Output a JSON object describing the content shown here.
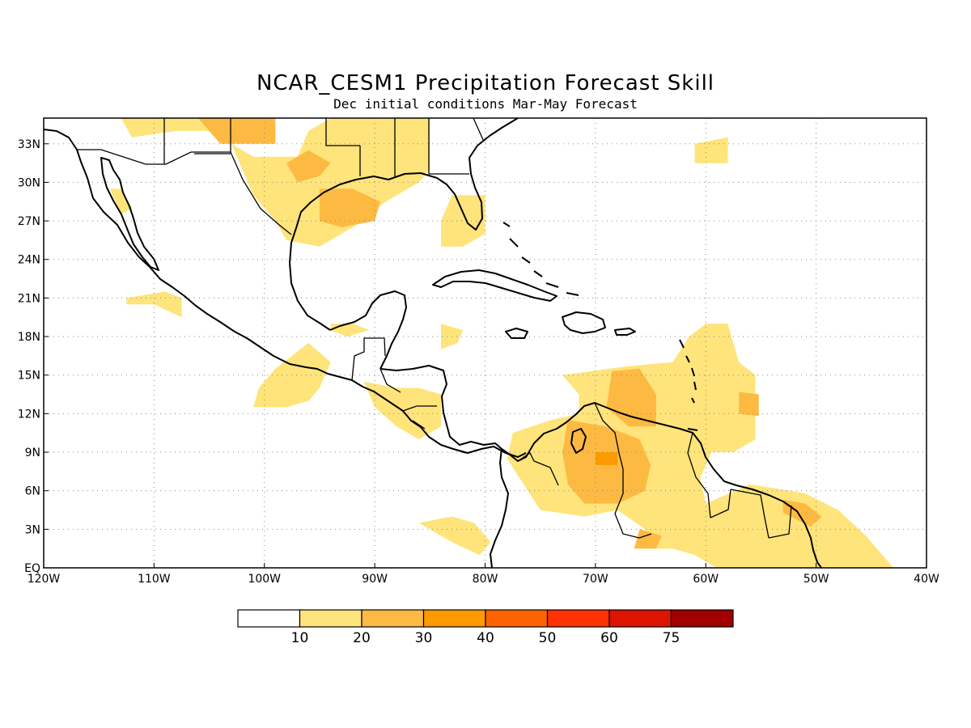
{
  "title": "NCAR_CESM1 Precipitation Forecast Skill",
  "subtitle": "Dec initial conditions  Mar-May Forecast",
  "map": {
    "lon_range": [
      -120,
      -40
    ],
    "lat_range": [
      0,
      35
    ],
    "lon_ticks": [
      {
        "value": -120,
        "label": "120W"
      },
      {
        "value": -110,
        "label": "110W"
      },
      {
        "value": -100,
        "label": "100W"
      },
      {
        "value": -90,
        "label": "90W"
      },
      {
        "value": -80,
        "label": "80W"
      },
      {
        "value": -70,
        "label": "70W"
      },
      {
        "value": -60,
        "label": "60W"
      },
      {
        "value": -50,
        "label": "50W"
      },
      {
        "value": -40,
        "label": "40W"
      }
    ],
    "lat_ticks": [
      {
        "value": 0,
        "label": "EQ"
      },
      {
        "value": 3,
        "label": "3N"
      },
      {
        "value": 6,
        "label": "6N"
      },
      {
        "value": 9,
        "label": "9N"
      },
      {
        "value": 12,
        "label": "12N"
      },
      {
        "value": 15,
        "label": "15N"
      },
      {
        "value": 18,
        "label": "18N"
      },
      {
        "value": 21,
        "label": "21N"
      },
      {
        "value": 24,
        "label": "24N"
      },
      {
        "value": 27,
        "label": "27N"
      },
      {
        "value": 30,
        "label": "30N"
      },
      {
        "value": 33,
        "label": "33N"
      }
    ],
    "grid": true
  },
  "colorbar": {
    "colors": [
      "#ffffff",
      "#fee47a",
      "#fdba42",
      "#fd9a00",
      "#fd6400",
      "#fd3200",
      "#dc1400",
      "#a00000"
    ],
    "labels": [
      "10",
      "20",
      "30",
      "40",
      "50",
      "60",
      "75"
    ]
  },
  "skill_regions": [
    {
      "level": 1,
      "coords": [
        [
          -113,
          35
        ],
        [
          -103.5,
          35
        ],
        [
          -103,
          33
        ],
        [
          -101,
          32
        ],
        [
          -97,
          32
        ],
        [
          -96,
          34
        ],
        [
          -94,
          35
        ],
        [
          -85,
          35
        ],
        [
          -85,
          31
        ],
        [
          -86,
          30
        ],
        [
          -89,
          28.5
        ],
        [
          -92,
          26.5
        ],
        [
          -95,
          25
        ],
        [
          -98,
          25.5
        ],
        [
          -99,
          27
        ],
        [
          -101,
          29
        ],
        [
          -102,
          31
        ],
        [
          -103,
          33
        ],
        [
          -105,
          34
        ],
        [
          -108,
          34
        ],
        [
          -112,
          33.5
        ]
      ]
    },
    {
      "level": 1,
      "coords": [
        [
          -83,
          29
        ],
        [
          -80,
          29
        ],
        [
          -80,
          26
        ],
        [
          -82,
          25
        ],
        [
          -84,
          25
        ],
        [
          -84,
          27
        ]
      ]
    },
    {
      "level": 1,
      "coords": [
        [
          -61,
          33
        ],
        [
          -58,
          33.5
        ],
        [
          -58,
          31.5
        ],
        [
          -61,
          31.5
        ]
      ]
    },
    {
      "level": 1,
      "coords": [
        [
          -114,
          29.5
        ],
        [
          -113,
          29.5
        ],
        [
          -112,
          28
        ],
        [
          -113,
          27.5
        ]
      ]
    },
    {
      "level": 1,
      "coords": [
        [
          -112.5,
          21
        ],
        [
          -109,
          21.5
        ],
        [
          -107.5,
          21
        ],
        [
          -107.5,
          19.5
        ],
        [
          -110,
          20.5
        ],
        [
          -112.5,
          20.5
        ]
      ]
    },
    {
      "level": 1,
      "coords": [
        [
          -94,
          19
        ],
        [
          -92,
          19
        ],
        [
          -90.5,
          18.5
        ],
        [
          -92.5,
          18
        ],
        [
          -94,
          18.5
        ]
      ]
    },
    {
      "level": 1,
      "coords": [
        [
          -84,
          19
        ],
        [
          -82,
          18.5
        ],
        [
          -82.5,
          17.5
        ],
        [
          -84,
          17
        ]
      ]
    },
    {
      "level": 1,
      "coords": [
        [
          -96,
          17.5
        ],
        [
          -94,
          16
        ],
        [
          -95,
          14
        ],
        [
          -96,
          13
        ],
        [
          -98,
          12.5
        ],
        [
          -101,
          12.5
        ],
        [
          -100.5,
          14
        ],
        [
          -99,
          15.5
        ]
      ]
    },
    {
      "level": 1,
      "coords": [
        [
          -91,
          14.5
        ],
        [
          -88,
          14
        ],
        [
          -86,
          14
        ],
        [
          -84,
          13.5
        ],
        [
          -84,
          11
        ],
        [
          -86,
          10
        ],
        [
          -88,
          11
        ],
        [
          -90,
          12.5
        ]
      ]
    },
    {
      "level": 1,
      "coords": [
        [
          -86,
          3.5
        ],
        [
          -83,
          4
        ],
        [
          -81,
          3.5
        ],
        [
          -79.5,
          2
        ],
        [
          -80.5,
          1
        ],
        [
          -83,
          2
        ]
      ]
    },
    {
      "level": 1,
      "coords": [
        [
          -73,
          15
        ],
        [
          -67,
          15.7
        ],
        [
          -63,
          16
        ],
        [
          -61.5,
          18
        ],
        [
          -60,
          19
        ],
        [
          -58,
          19
        ],
        [
          -57,
          16
        ],
        [
          -55.5,
          15
        ],
        [
          -55.5,
          10
        ],
        [
          -57.5,
          9
        ],
        [
          -59.5,
          9
        ],
        [
          -60.5,
          7
        ],
        [
          -60,
          5
        ],
        [
          -56,
          6.5
        ],
        [
          -51,
          5.8
        ],
        [
          -48,
          4.5
        ],
        [
          -45.5,
          2.5
        ],
        [
          -44,
          1
        ],
        [
          -43,
          0
        ],
        [
          -59,
          0
        ],
        [
          -61,
          1
        ],
        [
          -63,
          1.5
        ],
        [
          -65,
          1.5
        ],
        [
          -65.5,
          3
        ],
        [
          -68,
          4.5
        ],
        [
          -71,
          4
        ],
        [
          -75,
          4.5
        ],
        [
          -76.5,
          6.5
        ],
        [
          -78,
          8.5
        ],
        [
          -77.5,
          10.5
        ],
        [
          -74,
          11.5
        ],
        [
          -71.5,
          12
        ],
        [
          -71.5,
          13.5
        ]
      ]
    },
    {
      "level": 2,
      "coords": [
        [
          -106,
          35
        ],
        [
          -99,
          35
        ],
        [
          -99,
          33
        ],
        [
          -104,
          33
        ]
      ]
    },
    {
      "level": 2,
      "coords": [
        [
          -98,
          31.5
        ],
        [
          -96,
          32.5
        ],
        [
          -94,
          31.5
        ],
        [
          -95,
          30.5
        ],
        [
          -97,
          30
        ]
      ]
    },
    {
      "level": 2,
      "coords": [
        [
          -95,
          29.5
        ],
        [
          -92,
          29.5
        ],
        [
          -89.5,
          28.5
        ],
        [
          -90,
          27
        ],
        [
          -93,
          26.5
        ],
        [
          -95,
          27
        ]
      ]
    },
    {
      "level": 2,
      "coords": [
        [
          -68.5,
          15.3
        ],
        [
          -66,
          15.5
        ],
        [
          -64.5,
          13.5
        ],
        [
          -64.5,
          11
        ],
        [
          -67,
          11
        ],
        [
          -69,
          12.5
        ]
      ]
    },
    {
      "level": 2,
      "coords": [
        [
          -72.5,
          11.5
        ],
        [
          -69,
          11
        ],
        [
          -66,
          10
        ],
        [
          -65,
          8
        ],
        [
          -65.5,
          6
        ],
        [
          -68,
          5
        ],
        [
          -71,
          5
        ],
        [
          -72.5,
          6.5
        ],
        [
          -73,
          9
        ]
      ]
    },
    {
      "level": 2,
      "coords": [
        [
          -57,
          13.7
        ],
        [
          -55.2,
          13.5
        ],
        [
          -55.2,
          11.8
        ],
        [
          -57,
          12
        ]
      ]
    },
    {
      "level": 2,
      "coords": [
        [
          -66,
          3
        ],
        [
          -64,
          2.5
        ],
        [
          -64.5,
          1.5
        ],
        [
          -66.5,
          1.5
        ]
      ]
    },
    {
      "level": 2,
      "coords": [
        [
          -53,
          5.3
        ],
        [
          -51,
          5
        ],
        [
          -49.5,
          4
        ],
        [
          -50.5,
          3.2
        ],
        [
          -53,
          4.3
        ]
      ]
    },
    {
      "level": 3,
      "coords": [
        [
          -70,
          9
        ],
        [
          -68,
          9
        ],
        [
          -68,
          8
        ],
        [
          -70,
          8
        ]
      ]
    }
  ]
}
